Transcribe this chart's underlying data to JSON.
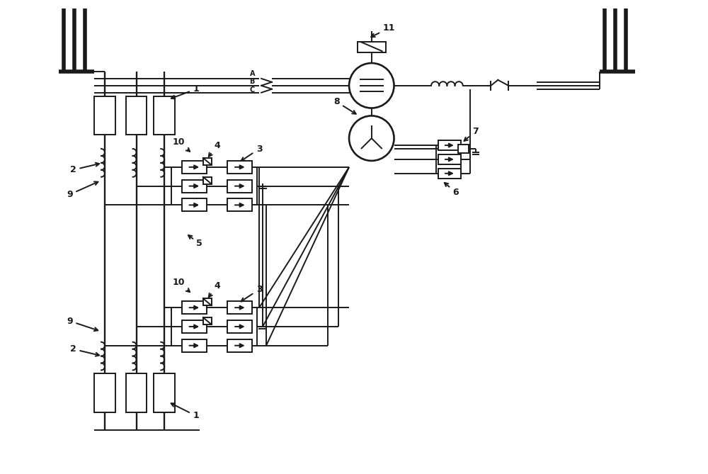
{
  "bg": "#ffffff",
  "lc": "#1a1a1a",
  "lw": 1.4,
  "tlw": 4.0,
  "fig_w": 10.0,
  "fig_h": 6.69,
  "xlim": [
    0,
    100
  ],
  "ylim": [
    0,
    66.9
  ]
}
